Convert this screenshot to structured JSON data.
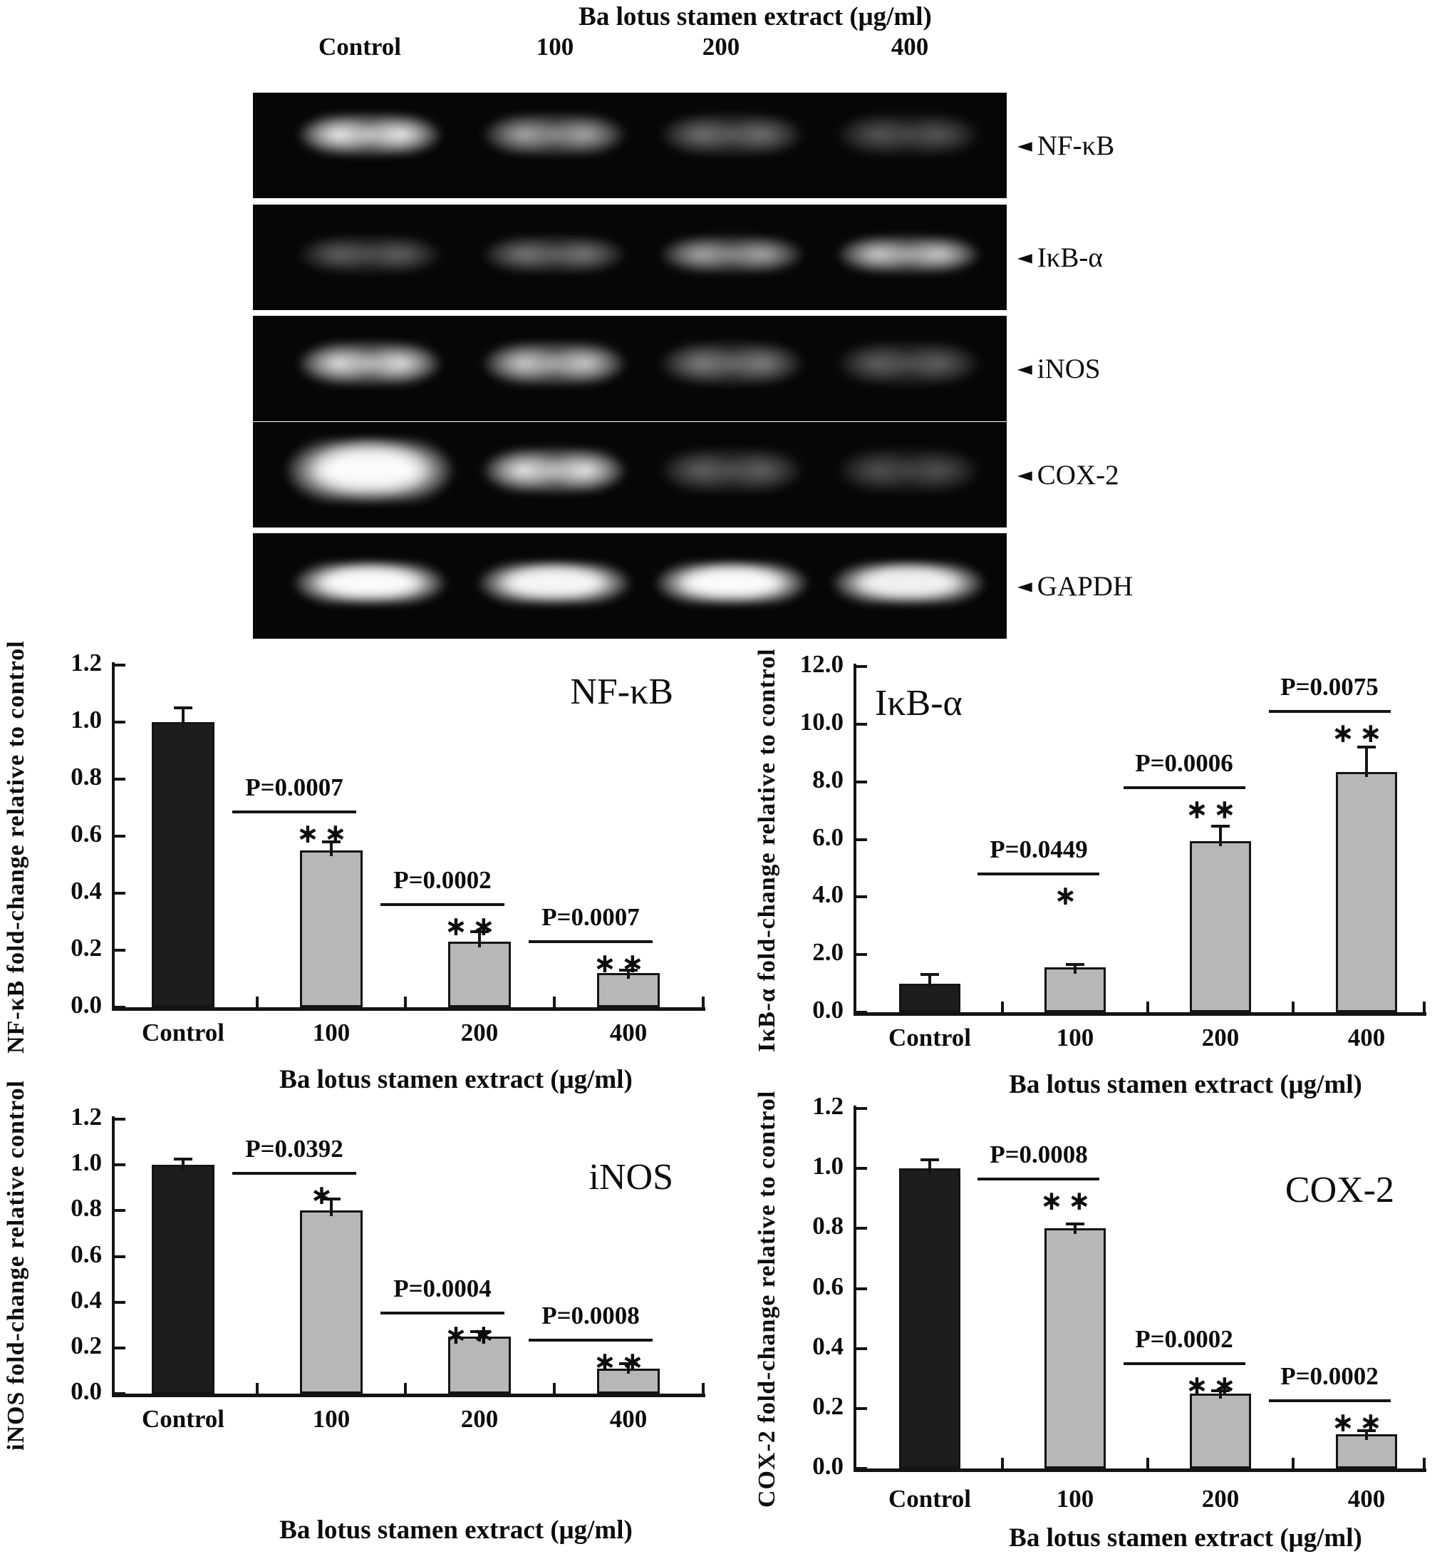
{
  "gel": {
    "header": "Ba lotus stamen extract (μg/ml)",
    "lane_labels": [
      "Control",
      "100",
      "200",
      "400"
    ],
    "marker_icon": "◄",
    "rows": [
      {
        "label": "NF-κB",
        "band_intensities": [
          0.9,
          0.65,
          0.42,
          0.3
        ]
      },
      {
        "label": "IκB-α",
        "band_intensities": [
          0.35,
          0.45,
          0.65,
          0.78
        ]
      },
      {
        "label": "iNOS",
        "band_intensities": [
          0.85,
          0.78,
          0.48,
          0.35
        ]
      },
      {
        "label": "COX-2",
        "band_intensities": [
          1.0,
          0.88,
          0.35,
          0.27
        ]
      },
      {
        "label": "GAPDH",
        "band_intensities": [
          1.0,
          0.97,
          1.0,
          0.95
        ]
      }
    ]
  },
  "chart_data": [
    {
      "type": "bar",
      "title": "NF-κB",
      "title_pos": "right",
      "categories": [
        "Control",
        "100",
        "200",
        "400"
      ],
      "values": [
        1.0,
        0.55,
        0.23,
        0.12
      ],
      "errors": [
        0.05,
        0.03,
        0.035,
        0.01
      ],
      "bar_colors": [
        "#1d1d1d",
        "#b7b7b7",
        "#b7b7b7",
        "#b7b7b7"
      ],
      "ylabel": "NF-κB fold-change relative to control",
      "xlabel": "Ba lotus stamen extract (μg/ml)",
      "ylim": [
        0,
        1.2
      ],
      "yticks": [
        "0.0",
        "0.2",
        "0.4",
        "0.6",
        "0.8",
        "1.0",
        "1.2"
      ],
      "annotations": [
        {
          "bar_index": 1,
          "p_label": "P=0.0007",
          "sig": "**",
          "line_y": 0.69
        },
        {
          "bar_index": 2,
          "p_label": "P=0.0002",
          "sig": "**",
          "line_y": 0.365
        },
        {
          "bar_index": 3,
          "p_label": "P=0.0007",
          "sig": "**",
          "line_y": 0.235
        }
      ]
    },
    {
      "type": "bar",
      "title": "IκB-α",
      "title_pos": "left",
      "categories": [
        "Control",
        "100",
        "200",
        "400"
      ],
      "values": [
        1.0,
        1.55,
        5.95,
        8.35
      ],
      "errors": [
        0.3,
        0.12,
        0.5,
        0.85
      ],
      "bar_colors": [
        "#1d1d1d",
        "#b7b7b7",
        "#b7b7b7",
        "#b7b7b7"
      ],
      "ylabel": "IκB-α fold-change relative to control",
      "xlabel": "Ba lotus stamen extract (μg/ml)",
      "ylim": [
        0,
        12
      ],
      "yticks": [
        "0.0",
        "2.0",
        "4.0",
        "6.0",
        "8.0",
        "10.0",
        "12.0"
      ],
      "annotations": [
        {
          "bar_index": 1,
          "p_label": "P=0.0449",
          "sig": "*",
          "line_y": 4.85
        },
        {
          "bar_index": 2,
          "p_label": "P=0.0006",
          "sig": "**",
          "line_y": 7.85
        },
        {
          "bar_index": 3,
          "p_label": "P=0.0075",
          "sig": "**",
          "line_y": 10.5
        }
      ]
    },
    {
      "type": "bar",
      "title": "iNOS",
      "title_pos": "right",
      "categories": [
        "Control",
        "100",
        "200",
        "400"
      ],
      "values": [
        1.0,
        0.8,
        0.25,
        0.11
      ],
      "errors": [
        0.025,
        0.05,
        0.02,
        0.02
      ],
      "bar_colors": [
        "#1d1d1d",
        "#b7b7b7",
        "#b7b7b7",
        "#b7b7b7"
      ],
      "ylabel": "iNOS fold-change relative control",
      "xlabel": "Ba lotus stamen extract (μg/ml)",
      "ylim": [
        0,
        1.2
      ],
      "yticks": [
        "0.0",
        "0.2",
        "0.4",
        "0.6",
        "0.8",
        "1.0",
        "1.2"
      ],
      "annotations": [
        {
          "bar_index": 1,
          "p_label": "P=0.0392",
          "sig": "*",
          "line_y": 0.97
        },
        {
          "bar_index": 2,
          "p_label": "P=0.0004",
          "sig": "**",
          "line_y": 0.36
        },
        {
          "bar_index": 3,
          "p_label": "P=0.0008",
          "sig": "**",
          "line_y": 0.24
        }
      ]
    },
    {
      "type": "bar",
      "title": "COX-2",
      "title_pos": "right",
      "categories": [
        "Control",
        "100",
        "200",
        "400"
      ],
      "values": [
        1.0,
        0.8,
        0.25,
        0.115
      ],
      "errors": [
        0.03,
        0.015,
        0.008,
        0.012
      ],
      "bar_colors": [
        "#1d1d1d",
        "#b7b7b7",
        "#b7b7b7",
        "#b7b7b7"
      ],
      "ylabel": "COX-2 fold-change relative to control",
      "xlabel": "Ba lotus stamen extract (μg/ml)",
      "ylim": [
        0,
        1.2
      ],
      "yticks": [
        "0.0",
        "0.2",
        "0.4",
        "0.6",
        "0.8",
        "1.0",
        "1.2"
      ],
      "annotations": [
        {
          "bar_index": 1,
          "p_label": "P=0.0008",
          "sig": "**",
          "line_y": 0.97
        },
        {
          "bar_index": 2,
          "p_label": "P=0.0002",
          "sig": "**",
          "line_y": 0.355
        },
        {
          "bar_index": 3,
          "p_label": "P=0.0002",
          "sig": "**",
          "line_y": 0.23
        }
      ]
    }
  ]
}
